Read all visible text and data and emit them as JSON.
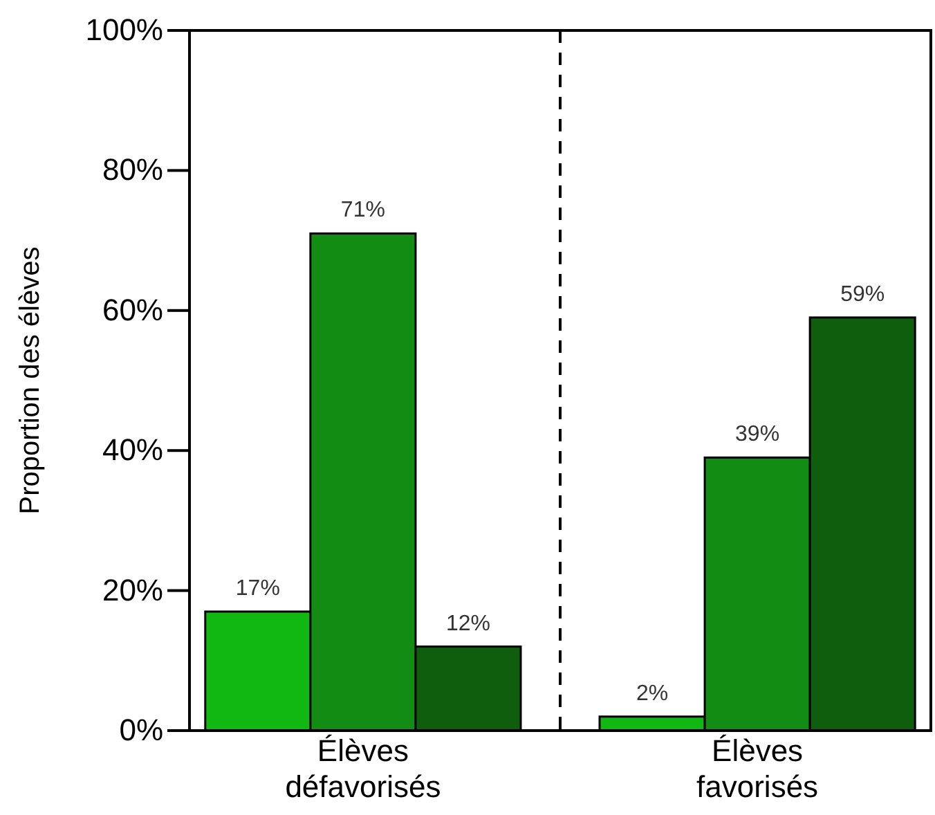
{
  "chart_data": {
    "type": "bar",
    "ylabel": "Proportion des élèves",
    "categories": [
      "Élèves défavorisés",
      "Élèves favorisés"
    ],
    "series": [
      {
        "color": "#12b812",
        "values": [
          17,
          2
        ],
        "value_labels": [
          "17%",
          "2%"
        ]
      },
      {
        "color": "#128c12",
        "values": [
          71,
          39
        ],
        "value_labels": [
          "71%",
          "39%"
        ]
      },
      {
        "color": "#0e5e0e",
        "values": [
          12,
          59
        ],
        "value_labels": [
          "12%",
          "59%"
        ]
      }
    ],
    "ylim": [
      0,
      100
    ],
    "yticks": [
      {
        "value": 0,
        "label": "0%"
      },
      {
        "value": 20,
        "label": "20%"
      },
      {
        "value": 40,
        "label": "40%"
      },
      {
        "value": 60,
        "label": "60%"
      },
      {
        "value": 80,
        "label": "80%"
      },
      {
        "value": 100,
        "label": "100%"
      }
    ],
    "grid": false
  }
}
